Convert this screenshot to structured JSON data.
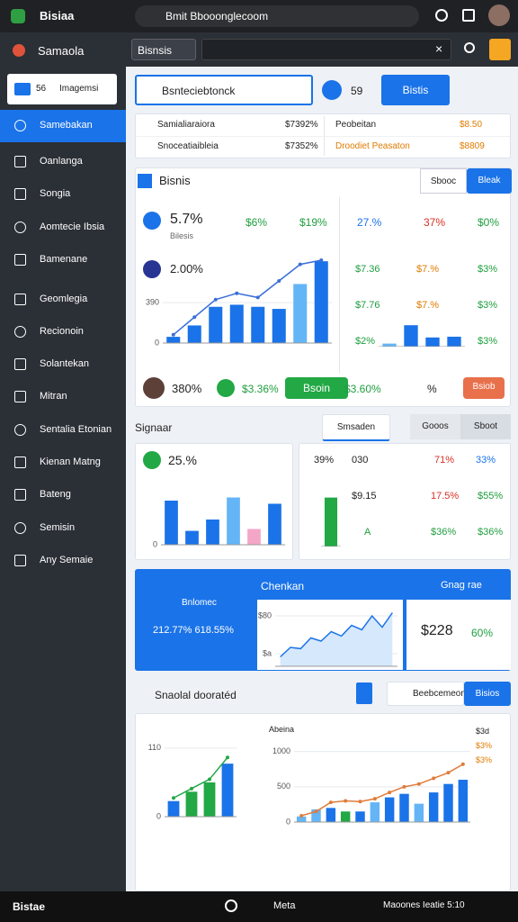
{
  "browser": {
    "app": "Bisiaa",
    "url": "Bmit Bbooonglecoom"
  },
  "toolbar": {
    "brand": "Samaola",
    "dropdown": "Bisnsis"
  },
  "sidebar": {
    "selector": {
      "badge": "56",
      "label": "Imagemsi"
    },
    "items": [
      "Samebakan",
      "Oanlanga",
      "Songia",
      "Aomtecie Ibsia",
      "Bamenane",
      "Geomlegia",
      "Recionoin",
      "Solantekan",
      "Mitran",
      "Sentalia Etonian",
      "Kienan Matng",
      "Bateng",
      "Semisin",
      "Any Semaie"
    ]
  },
  "filters": {
    "select": "Bsnteciebtonck",
    "value": "59",
    "button": "Bistis"
  },
  "summary": {
    "left": [
      [
        "Samialiaraiora",
        "$7392%"
      ],
      [
        "Snoceatiaibleia",
        "$7352%"
      ]
    ],
    "right": [
      [
        "Peobeitan",
        "$8.50"
      ],
      [
        "Droodiet Peasaton",
        "$8809"
      ]
    ]
  },
  "overview": {
    "title": "Bisnis",
    "tabs": [
      "Sbooc",
      "Bleak"
    ],
    "stat": "5.7%",
    "stat_note": "Bilesis",
    "kpis": [
      "$6%",
      "$19%"
    ],
    "kpis_right": [
      "27.%",
      "37%",
      "$0%"
    ],
    "chart_label": "2.00%",
    "chart": {
      "type": "bar",
      "ylim": [
        0,
        800
      ],
      "yticks": [
        0,
        390
      ],
      "bars": [
        60,
        170,
        350,
        370,
        350,
        330,
        570,
        790
      ],
      "bar_colors": [
        "#1a73e8",
        "#1a73e8",
        "#1a73e8",
        "#1a73e8",
        "#1a73e8",
        "#1a73e8",
        "#64b5f6",
        "#1a73e8"
      ],
      "line": [
        80,
        250,
        420,
        480,
        440,
        600,
        760,
        800
      ],
      "line_color": "#3a6fd8"
    },
    "mini_rows": [
      [
        "$7.36",
        "$7.%",
        "$3%"
      ],
      [
        "$7.76",
        "$7.%",
        "$3%"
      ],
      [
        "$2%",
        "$3%"
      ]
    ],
    "mini_chart": {
      "type": "bar",
      "ylim": [
        0,
        400
      ],
      "bars": [
        40,
        280,
        120,
        130
      ],
      "bar_colors": [
        "#64b5f6",
        "#1a73e8",
        "#1a73e8",
        "#1a73e8"
      ]
    },
    "footer": {
      "value": "380%",
      "check": "$3.36%",
      "button": "Bsoin",
      "value2": "$3.60%",
      "pct": "%",
      "button2": "Bsiob"
    }
  },
  "section2": {
    "title": "Signaar",
    "tab": "Smsaden",
    "segments": [
      "Gooos",
      "Sboot"
    ],
    "card_a": {
      "stat": "25.%",
      "chart": {
        "type": "bar",
        "ylim": [
          0,
          100
        ],
        "yticks": [
          0
        ],
        "bars": [
          70,
          22,
          40,
          75,
          25,
          65
        ],
        "bar_colors": [
          "#1a73e8",
          "#1a73e8",
          "#1a73e8",
          "#64b5f6",
          "#f4a6c8",
          "#1a73e8"
        ]
      }
    },
    "card_b": {
      "rows": [
        [
          "39%",
          "030",
          "71%",
          "33%"
        ],
        [
          "$9.15",
          "17.5%",
          "$55%"
        ],
        [
          "A",
          "$36%",
          "$36%"
        ]
      ],
      "chart": {
        "type": "bar",
        "ylim": [
          0,
          100
        ],
        "bars": [
          85
        ],
        "bar_colors": [
          "#22a845"
        ]
      }
    }
  },
  "panel": {
    "title": "Chenkan",
    "action": "Gnag rae",
    "gauge_label": "Bnlomec",
    "gauge_values": "212.77% 618.55%",
    "amount": "$228",
    "pct": "60%",
    "chart": {
      "type": "line",
      "ylim": [
        0,
        100
      ],
      "yticks": [
        {
          "value": 20,
          "label": "$a"
        },
        {
          "value": 80,
          "label": "$80"
        }
      ],
      "line": [
        15,
        30,
        28,
        45,
        40,
        55,
        48,
        65,
        58,
        80,
        62,
        85
      ],
      "line_color": "#1a73e8"
    }
  },
  "section3": {
    "title": "Snaolal dooratéd",
    "input": "Beebcemeon",
    "button": "Bisios",
    "chart_left": {
      "type": "bar",
      "ylim": [
        0,
        130
      ],
      "yticks": [
        0,
        110
      ],
      "bars": [
        25,
        40,
        55,
        85
      ],
      "bar_colors": [
        "#1a73e8",
        "#22a845",
        "#22a845",
        "#1a73e8"
      ],
      "line": [
        30,
        45,
        60,
        95
      ],
      "line_color": "#22a845"
    },
    "chart_right": {
      "type": "bar",
      "title": "Abeina",
      "ylim": [
        0,
        1200
      ],
      "yticks": [
        0,
        500,
        1000
      ],
      "bars": [
        80,
        180,
        200,
        150,
        150,
        280,
        350,
        400,
        260,
        420,
        540,
        600
      ],
      "bar_colors": [
        "#64b5f6",
        "#64b5f6",
        "#1a73e8",
        "#22a845",
        "#1a73e8",
        "#64b5f6",
        "#1a73e8",
        "#1a73e8",
        "#64b5f6",
        "#1a73e8",
        "#1a73e8",
        "#1a73e8"
      ],
      "line": [
        90,
        150,
        280,
        300,
        290,
        330,
        420,
        500,
        540,
        620,
        700,
        820
      ],
      "line_color": "#e07b39"
    },
    "side_labels": [
      "$3d",
      "$3%",
      "$3%"
    ]
  },
  "bottom": {
    "brand": "Bistae",
    "center": "Meta",
    "right": "Maoones Ieatie 5:10"
  }
}
